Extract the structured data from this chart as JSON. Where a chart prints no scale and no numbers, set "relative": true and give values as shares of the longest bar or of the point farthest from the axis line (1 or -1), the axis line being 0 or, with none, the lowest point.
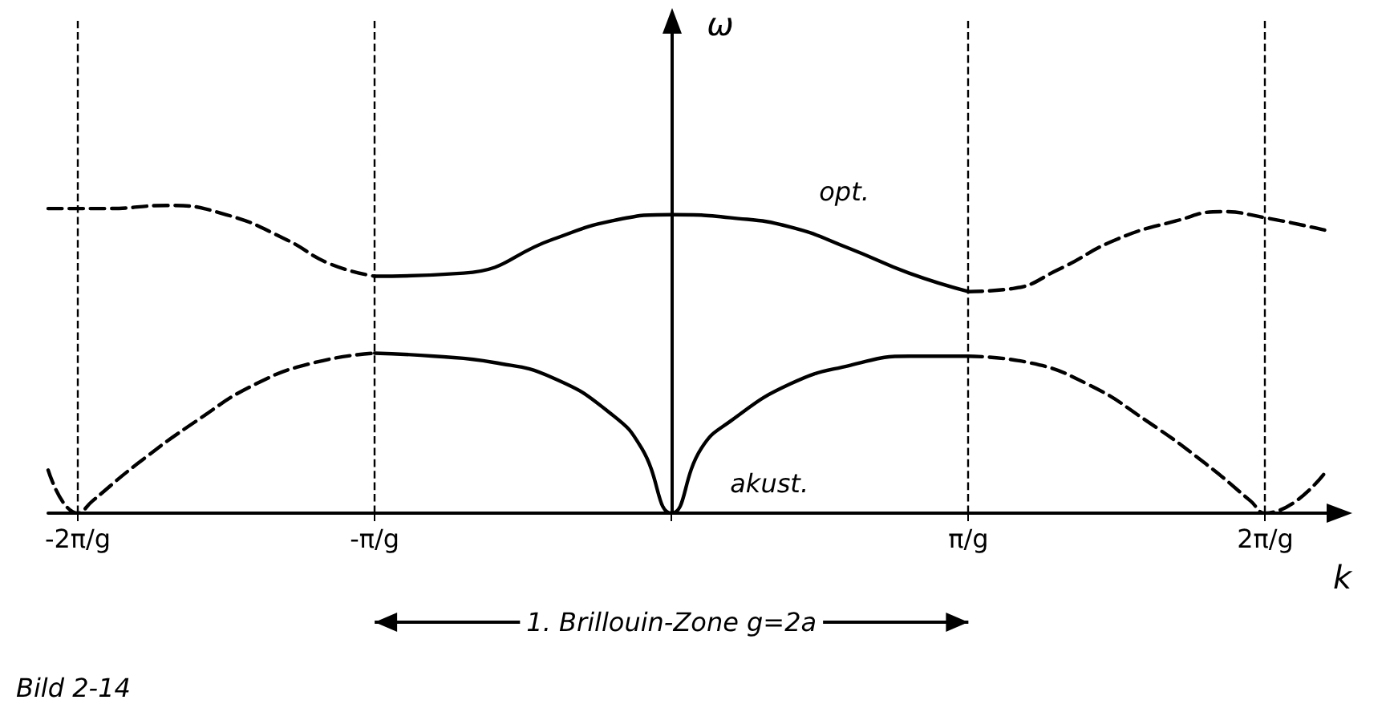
{
  "chart_data": {
    "type": "line",
    "relative": true,
    "xlabel": "k",
    "ylabel": "ω",
    "xlim": [
      -2.1,
      2.25
    ],
    "ylim": [
      0,
      1.6
    ],
    "xticks": [
      {
        "value": -2,
        "label": "-2π/g"
      },
      {
        "value": -1,
        "label": "-π/g"
      },
      {
        "value": 0,
        "label": null
      },
      {
        "value": 1,
        "label": "π/g"
      },
      {
        "value": 2,
        "label": "2π/g"
      }
    ],
    "grid": false,
    "legend": false,
    "marker": "none",
    "series": [
      {
        "name": "opt.",
        "color": "#000000",
        "line_style": "solid",
        "x": [
          -1,
          -0.7,
          -0.4,
          -0.2,
          0,
          0.2,
          0.4,
          0.6,
          0.8,
          1
        ],
        "values": [
          0.77,
          0.78,
          0.89,
          0.95,
          0.97,
          0.96,
          0.93,
          0.86,
          0.78,
          0.72
        ]
      },
      {
        "color": "#000000",
        "line_style": "dashed",
        "x": [
          -2.1,
          -1.9,
          -1.7,
          -1.5,
          -1.3,
          -1.15,
          -1
        ],
        "values": [
          0.99,
          0.99,
          1.0,
          0.97,
          0.89,
          0.81,
          0.77
        ]
      },
      {
        "color": "#000000",
        "line_style": "dashed",
        "x": [
          1,
          1.15,
          1.3,
          1.5,
          1.7,
          1.85,
          2,
          2.2
        ],
        "values": [
          0.72,
          0.73,
          0.79,
          0.89,
          0.95,
          0.98,
          0.96,
          0.92
        ]
      },
      {
        "name": "akust.",
        "color": "#000000",
        "line_style": "solid",
        "x": [
          -1,
          -0.8,
          -0.6,
          -0.4,
          -0.2,
          -0.1,
          0,
          0.1,
          0.2,
          0.4,
          0.6,
          0.8,
          1
        ],
        "values": [
          0.52,
          0.51,
          0.49,
          0.44,
          0.32,
          0.21,
          0,
          0.21,
          0.3,
          0.42,
          0.48,
          0.51,
          0.51
        ]
      },
      {
        "color": "#000000",
        "line_style": "dashed",
        "x": [
          -2.1,
          -2,
          -1.95,
          -1.8,
          -1.6,
          -1.4,
          -1.2,
          -1
        ],
        "values": [
          0.14,
          0,
          0.04,
          0.16,
          0.3,
          0.42,
          0.49,
          0.52
        ]
      },
      {
        "color": "#000000",
        "line_style": "dashed",
        "x": [
          1,
          1.2,
          1.4,
          1.6,
          1.8,
          1.95,
          2,
          2.2
        ],
        "values": [
          0.51,
          0.49,
          0.42,
          0.3,
          0.16,
          0.04,
          0,
          0.13
        ]
      }
    ],
    "ref_lines": [
      {
        "axis": "x",
        "value": -2,
        "line_style": "dashed"
      },
      {
        "axis": "x",
        "value": -1,
        "line_style": "dashed"
      },
      {
        "axis": "x",
        "value": 1,
        "line_style": "dashed"
      },
      {
        "axis": "x",
        "value": 2,
        "line_style": "dashed"
      }
    ],
    "annotations": [
      "1. Brillouin-Zone g=2a",
      "Bild 2-14"
    ]
  }
}
